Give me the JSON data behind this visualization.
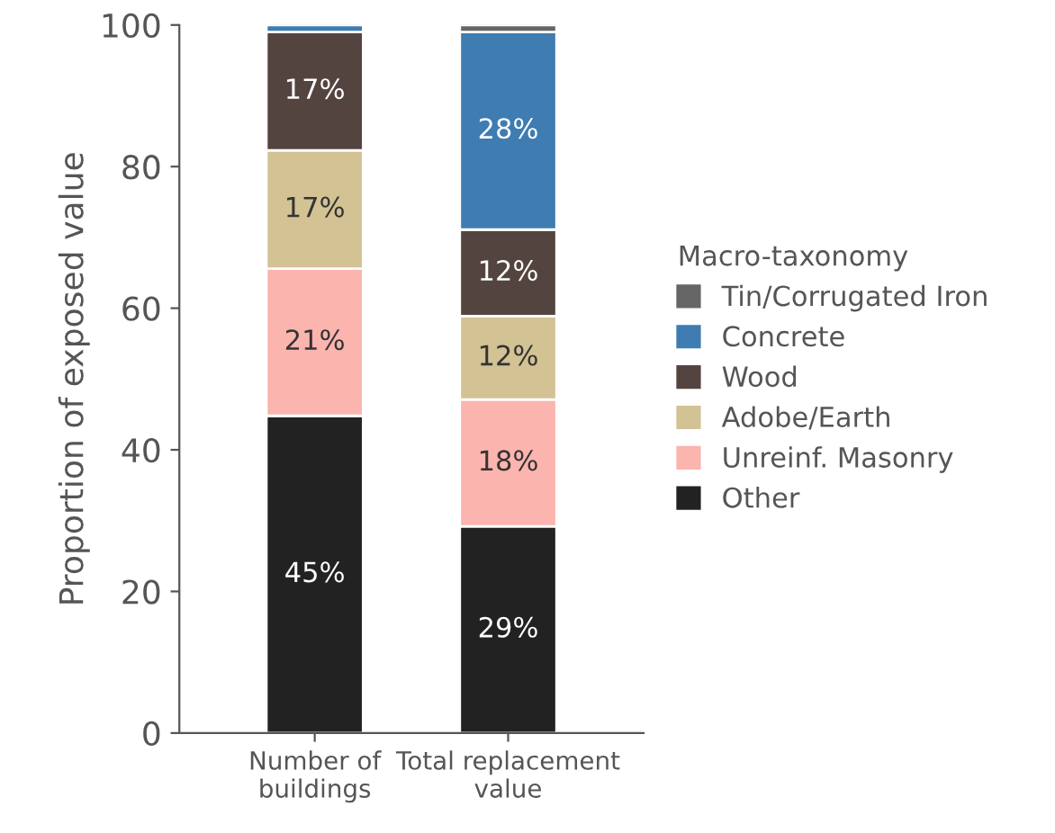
{
  "chart_data": {
    "type": "bar",
    "stacked": true,
    "ylabel": "Proportion of exposed value",
    "legend_title": "Macro-taxonomy",
    "legend": "right",
    "categories": [
      "Number of\nbuildings",
      "Total replacement\nvalue"
    ],
    "ylim": [
      0,
      100
    ],
    "yticks": [
      0,
      20,
      40,
      60,
      80,
      100
    ],
    "grid": false,
    "series": [
      {
        "name": "Other",
        "color": "#222222",
        "values": [
          44.8,
          29.2
        ],
        "value_labels": [
          "45%",
          "29%"
        ]
      },
      {
        "name": "Unreinf. Masonry",
        "color": "#fbb4ae",
        "values": [
          20.8,
          17.9
        ],
        "value_labels": [
          "21%",
          "18%"
        ]
      },
      {
        "name": "Adobe/Earth",
        "color": "#d2c294",
        "values": [
          16.7,
          11.8
        ],
        "value_labels": [
          "17%",
          "12%"
        ]
      },
      {
        "name": "Wood",
        "color": "#54443f",
        "values": [
          16.7,
          12.2
        ],
        "value_labels": [
          "17%",
          "12%"
        ]
      },
      {
        "name": "Concrete",
        "color": "#3e7cb1",
        "values": [
          1.0,
          27.9
        ],
        "value_labels": [
          null,
          "28%"
        ]
      },
      {
        "name": "Tin/Corrugated Iron",
        "color": "#666666",
        "values": [
          null,
          1.0
        ],
        "value_labels": [
          null,
          null
        ]
      }
    ]
  }
}
